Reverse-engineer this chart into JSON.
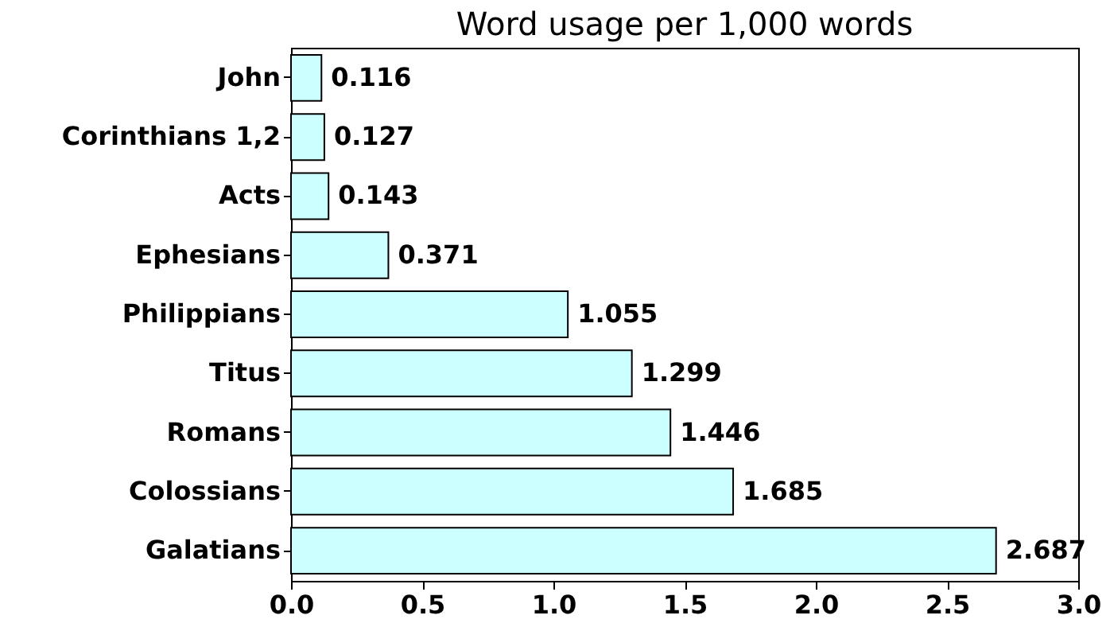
{
  "chart_data": {
    "type": "bar",
    "orientation": "horizontal",
    "title": "Word usage per 1,000 words",
    "categories": [
      "John",
      "Corinthians 1,2",
      "Acts",
      "Ephesians",
      "Philippians",
      "Titus",
      "Romans",
      "Colossians",
      "Galatians"
    ],
    "values": [
      0.116,
      0.127,
      0.143,
      0.371,
      1.055,
      1.299,
      1.446,
      1.685,
      2.687
    ],
    "color": "#ccffff",
    "data_labels": true,
    "grid": false,
    "xlim": [
      0,
      3
    ],
    "xticks": [
      {
        "value": 0,
        "label": "0.0"
      },
      {
        "value": 0.5,
        "label": "0.5"
      },
      {
        "value": 1,
        "label": "1.0"
      },
      {
        "value": 1.5,
        "label": "1.5"
      },
      {
        "value": 2,
        "label": "2.0"
      },
      {
        "value": 2.5,
        "label": "2.5"
      },
      {
        "value": 3,
        "label": "3.0"
      }
    ]
  }
}
